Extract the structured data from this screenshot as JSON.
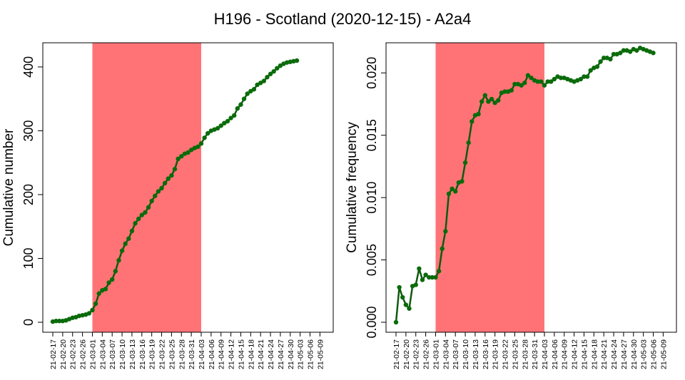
{
  "title": "H196 - Scotland (2020-12-15) - A2a4",
  "colors": {
    "line": "#0f5a0f",
    "marker": "#0a6b0a",
    "highlight": "#ff7377",
    "axis": "#000000"
  },
  "x_tick_labels": [
    "21-02-17",
    "21-02-20",
    "21-02-23",
    "21-02-26",
    "21-03-01",
    "21-03-04",
    "21-03-07",
    "21-03-10",
    "21-03-13",
    "21-03-16",
    "21-03-19",
    "21-03-22",
    "21-03-25",
    "21-03-28",
    "21-03-31",
    "21-04-03",
    "21-04-06",
    "21-04-09",
    "21-04-12",
    "21-04-15",
    "21-04-18",
    "21-04-21",
    "21-04-24",
    "21-04-27",
    "21-04-30",
    "21-05-03",
    "21-05-06",
    "21-05-09"
  ],
  "chart_data": [
    {
      "type": "line",
      "ylabel": "Cumulative number",
      "xlabel": "",
      "x_start": "21-02-17",
      "x_end": "21-05-10",
      "ylim": [
        0,
        420
      ],
      "yticks": [
        0,
        100,
        200,
        300,
        400
      ],
      "highlight_range": [
        "21-03-01",
        "21-04-03"
      ],
      "values": [
        1,
        2,
        2,
        2,
        3,
        5,
        7,
        8,
        10,
        11,
        12,
        14,
        19,
        29,
        45,
        50,
        52,
        62,
        67,
        80,
        97,
        112,
        123,
        131,
        143,
        155,
        162,
        168,
        172,
        180,
        190,
        198,
        205,
        210,
        218,
        225,
        230,
        240,
        256,
        260,
        264,
        266,
        270,
        273,
        275,
        280,
        289,
        296,
        300,
        302,
        304,
        308,
        312,
        315,
        320,
        324,
        335,
        341,
        350,
        358,
        362,
        365,
        372,
        375,
        378,
        384,
        389,
        393,
        398,
        402,
        405,
        407,
        408,
        409,
        410
      ]
    },
    {
      "type": "line",
      "ylabel": "Cumulative frequency",
      "xlabel": "",
      "x_start": "21-02-17",
      "x_end": "21-05-10",
      "ylim": [
        0,
        0.0215
      ],
      "yticks": [
        0.0,
        0.005,
        0.01,
        0.015,
        0.02
      ],
      "ytick_labels": [
        "0.000",
        "0.005",
        "0.010",
        "0.015",
        "0.020"
      ],
      "highlight_range": [
        "21-03-01",
        "21-04-03"
      ],
      "values": [
        0.0,
        0.0028,
        0.002,
        0.0014,
        0.0011,
        0.0029,
        0.003,
        0.0043,
        0.0034,
        0.0038,
        0.0036,
        0.0036,
        0.0036,
        0.0041,
        0.0059,
        0.0073,
        0.0103,
        0.0107,
        0.0105,
        0.0112,
        0.0113,
        0.0128,
        0.0144,
        0.0161,
        0.0166,
        0.0167,
        0.0177,
        0.0182,
        0.0177,
        0.0179,
        0.0176,
        0.0178,
        0.0184,
        0.0185,
        0.0185,
        0.0186,
        0.0191,
        0.0191,
        0.019,
        0.0192,
        0.0198,
        0.0196,
        0.0194,
        0.0193,
        0.0193,
        0.019,
        0.0193,
        0.0193,
        0.0195,
        0.0197,
        0.0196,
        0.0196,
        0.0195,
        0.0194,
        0.0193,
        0.0194,
        0.0195,
        0.0197,
        0.0197,
        0.0202,
        0.0204,
        0.0205,
        0.0209,
        0.0212,
        0.0212,
        0.0211,
        0.0215,
        0.0215,
        0.0216,
        0.0218,
        0.0218,
        0.0217,
        0.0219,
        0.0218,
        0.022,
        0.0219,
        0.0218,
        0.0217,
        0.0216
      ]
    }
  ]
}
